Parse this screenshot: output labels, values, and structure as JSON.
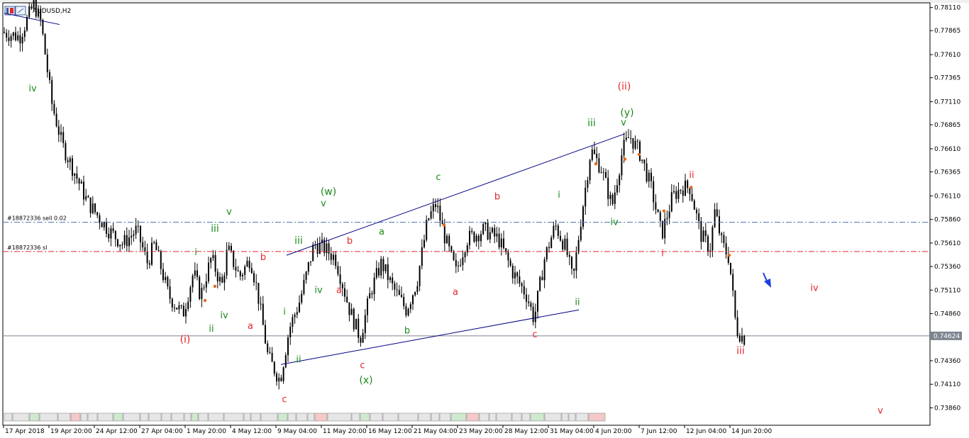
{
  "window": {
    "title": "AUDUSD,H2"
  },
  "colors": {
    "background": "#ffffff",
    "candles": "#000000",
    "trendlines": "#000080",
    "sell_line": "#4a73b8",
    "sl_line": "#e3262a",
    "last_price_line": "#7c8590",
    "green_wave": "#1a8a1a",
    "red_wave": "#e3262a",
    "arrow": "#1f3fe0"
  },
  "orders": {
    "sell_label": "#18872336 sell 0.02",
    "sell_price": 0.7583,
    "sl_label": "#18872336 sl",
    "sl_price": 0.7552
  },
  "chart_data": {
    "type": "candlestick",
    "symbol": "AUDUSD",
    "timeframe": "H2",
    "title": "AUDUSD,H2",
    "ylim": [
      0.73675,
      0.7816
    ],
    "y_ticks": [
      "0.78110",
      "0.77865",
      "0.77610",
      "0.77365",
      "0.77110",
      "0.76865",
      "0.76610",
      "0.76365",
      "0.76110",
      "0.75860",
      "0.75610",
      "0.75360",
      "0.75110",
      "0.74860",
      "0.74624",
      "0.74360",
      "0.74110",
      "0.73860"
    ],
    "last_price": "0.74624",
    "x_labels": [
      "17 Apr 2018",
      "19 Apr 20:00",
      "24 Apr 12:00",
      "27 Apr 04:00",
      "1 May 20:00",
      "4 May 12:00",
      "9 May 04:00",
      "11 May 20:00",
      "16 May 12:00",
      "21 May 04:00",
      "23 May 20:00",
      "28 May 12:00",
      "31 May 04:00",
      "4 Jun 20:00",
      "7 Jun 12:00",
      "12 Jun 04:00",
      "14 Jun 20:00"
    ],
    "price_path": [
      {
        "t": 0.0,
        "p": 0.7785
      },
      {
        "t": 0.025,
        "p": 0.778
      },
      {
        "t": 0.045,
        "p": 0.7815
      },
      {
        "t": 0.055,
        "p": 0.7795
      },
      {
        "t": 0.07,
        "p": 0.771
      },
      {
        "t": 0.085,
        "p": 0.7665
      },
      {
        "t": 0.1,
        "p": 0.764
      },
      {
        "t": 0.12,
        "p": 0.7605
      },
      {
        "t": 0.15,
        "p": 0.7575
      },
      {
        "t": 0.17,
        "p": 0.756
      },
      {
        "t": 0.19,
        "p": 0.7575
      },
      {
        "t": 0.205,
        "p": 0.754
      },
      {
        "t": 0.215,
        "p": 0.756
      },
      {
        "t": 0.235,
        "p": 0.7505
      },
      {
        "t": 0.255,
        "p": 0.7485
      },
      {
        "t": 0.27,
        "p": 0.753
      },
      {
        "t": 0.28,
        "p": 0.7505
      },
      {
        "t": 0.295,
        "p": 0.7545
      },
      {
        "t": 0.31,
        "p": 0.7515
      },
      {
        "t": 0.318,
        "p": 0.7555
      },
      {
        "t": 0.335,
        "p": 0.7525
      },
      {
        "t": 0.35,
        "p": 0.7545
      },
      {
        "t": 0.36,
        "p": 0.751
      },
      {
        "t": 0.375,
        "p": 0.744
      },
      {
        "t": 0.392,
        "p": 0.7415
      },
      {
        "t": 0.405,
        "p": 0.747
      },
      {
        "t": 0.42,
        "p": 0.75
      },
      {
        "t": 0.44,
        "p": 0.756
      },
      {
        "t": 0.455,
        "p": 0.7555
      },
      {
        "t": 0.47,
        "p": 0.7545
      },
      {
        "t": 0.49,
        "p": 0.749
      },
      {
        "t": 0.505,
        "p": 0.746
      },
      {
        "t": 0.52,
        "p": 0.751
      },
      {
        "t": 0.535,
        "p": 0.754
      },
      {
        "t": 0.55,
        "p": 0.7515
      },
      {
        "t": 0.57,
        "p": 0.749
      },
      {
        "t": 0.585,
        "p": 0.752
      },
      {
        "t": 0.6,
        "p": 0.7585
      },
      {
        "t": 0.612,
        "p": 0.7603
      },
      {
        "t": 0.625,
        "p": 0.7565
      },
      {
        "t": 0.64,
        "p": 0.753
      },
      {
        "t": 0.655,
        "p": 0.7565
      },
      {
        "t": 0.68,
        "p": 0.7575
      },
      {
        "t": 0.7,
        "p": 0.7565
      },
      {
        "t": 0.72,
        "p": 0.753
      },
      {
        "t": 0.74,
        "p": 0.7505
      },
      {
        "t": 0.75,
        "p": 0.748
      },
      {
        "t": 0.765,
        "p": 0.7545
      },
      {
        "t": 0.78,
        "p": 0.758
      },
      {
        "t": 0.795,
        "p": 0.7555
      },
      {
        "t": 0.805,
        "p": 0.752
      },
      {
        "t": 0.815,
        "p": 0.758
      },
      {
        "t": 0.83,
        "p": 0.766
      },
      {
        "t": 0.845,
        "p": 0.764
      },
      {
        "t": 0.86,
        "p": 0.76
      },
      {
        "t": 0.875,
        "p": 0.766
      },
      {
        "t": 0.885,
        "p": 0.7675
      },
      {
        "t": 0.9,
        "p": 0.7655
      },
      {
        "t": 0.915,
        "p": 0.762
      },
      {
        "t": 0.93,
        "p": 0.757
      },
      {
        "t": 0.945,
        "p": 0.761
      },
      {
        "t": 0.958,
        "p": 0.762
      },
      {
        "t": 0.97,
        "p": 0.762
      },
      {
        "t": 0.985,
        "p": 0.757
      },
      {
        "t": 0.998,
        "p": 0.7555
      },
      {
        "t": 1.005,
        "p": 0.7595
      },
      {
        "t": 1.015,
        "p": 0.756
      },
      {
        "t": 1.025,
        "p": 0.7545
      },
      {
        "t": 1.035,
        "p": 0.747
      },
      {
        "t": 1.045,
        "p": 0.746
      }
    ],
    "annotations": [
      {
        "text": "iv",
        "color": "green",
        "t": 0.04,
        "p": 0.7722
      },
      {
        "text": "(i)",
        "color": "red",
        "t": 0.255,
        "p": 0.7455
      },
      {
        "text": "i",
        "color": "green",
        "t": 0.27,
        "p": 0.7548
      },
      {
        "text": "ii",
        "color": "green",
        "t": 0.292,
        "p": 0.7467
      },
      {
        "text": "iii",
        "color": "green",
        "t": 0.297,
        "p": 0.7573
      },
      {
        "text": "iv",
        "color": "green",
        "t": 0.31,
        "p": 0.7481
      },
      {
        "text": "v",
        "color": "green",
        "t": 0.317,
        "p": 0.7591
      },
      {
        "text": "b",
        "color": "red",
        "t": 0.365,
        "p": 0.7543
      },
      {
        "text": "a",
        "color": "red",
        "t": 0.347,
        "p": 0.747
      },
      {
        "text": "c",
        "color": "red",
        "t": 0.395,
        "p": 0.7392
      },
      {
        "text": "i",
        "color": "green",
        "t": 0.395,
        "p": 0.7485
      },
      {
        "text": "ii",
        "color": "green",
        "t": 0.415,
        "p": 0.7434
      },
      {
        "text": "iii",
        "color": "green",
        "t": 0.415,
        "p": 0.756
      },
      {
        "text": "iv",
        "color": "green",
        "t": 0.443,
        "p": 0.7508
      },
      {
        "text": "v",
        "color": "green",
        "t": 0.45,
        "p": 0.76
      },
      {
        "text": "(w)",
        "color": "green",
        "t": 0.457,
        "p": 0.7612
      },
      {
        "text": "b",
        "color": "red",
        "t": 0.487,
        "p": 0.756
      },
      {
        "text": "a",
        "color": "red",
        "t": 0.472,
        "p": 0.7508
      },
      {
        "text": "c",
        "color": "red",
        "t": 0.505,
        "p": 0.7428
      },
      {
        "text": "(x)",
        "color": "green",
        "t": 0.51,
        "p": 0.7412
      },
      {
        "text": "a",
        "color": "green",
        "t": 0.532,
        "p": 0.757
      },
      {
        "text": "b",
        "color": "green",
        "t": 0.568,
        "p": 0.7465
      },
      {
        "text": "c",
        "color": "green",
        "t": 0.612,
        "p": 0.7628
      },
      {
        "text": "a",
        "color": "red",
        "t": 0.636,
        "p": 0.7506
      },
      {
        "text": "b",
        "color": "red",
        "t": 0.695,
        "p": 0.7607
      },
      {
        "text": "c",
        "color": "red",
        "t": 0.748,
        "p": 0.7461
      },
      {
        "text": "i",
        "color": "green",
        "t": 0.782,
        "p": 0.7609
      },
      {
        "text": "ii",
        "color": "green",
        "t": 0.808,
        "p": 0.7495
      },
      {
        "text": "iii",
        "color": "green",
        "t": 0.828,
        "p": 0.7685
      },
      {
        "text": "iv",
        "color": "green",
        "t": 0.86,
        "p": 0.758
      },
      {
        "text": "(ii)",
        "color": "red",
        "t": 0.874,
        "p": 0.7724
      },
      {
        "text": "(y)",
        "color": "green",
        "t": 0.878,
        "p": 0.7696
      },
      {
        "text": "v",
        "color": "green",
        "t": 0.873,
        "p": 0.7686
      },
      {
        "text": "ii",
        "color": "red",
        "t": 0.969,
        "p": 0.763
      },
      {
        "text": "i",
        "color": "red",
        "t": 0.928,
        "p": 0.7547
      },
      {
        "text": "iii",
        "color": "red",
        "t": 1.038,
        "p": 0.7443
      },
      {
        "text": "iv",
        "color": "red",
        "t": 1.142,
        "p": 0.751
      },
      {
        "text": "v",
        "color": "red",
        "t": 1.235,
        "p": 0.738
      }
    ]
  }
}
